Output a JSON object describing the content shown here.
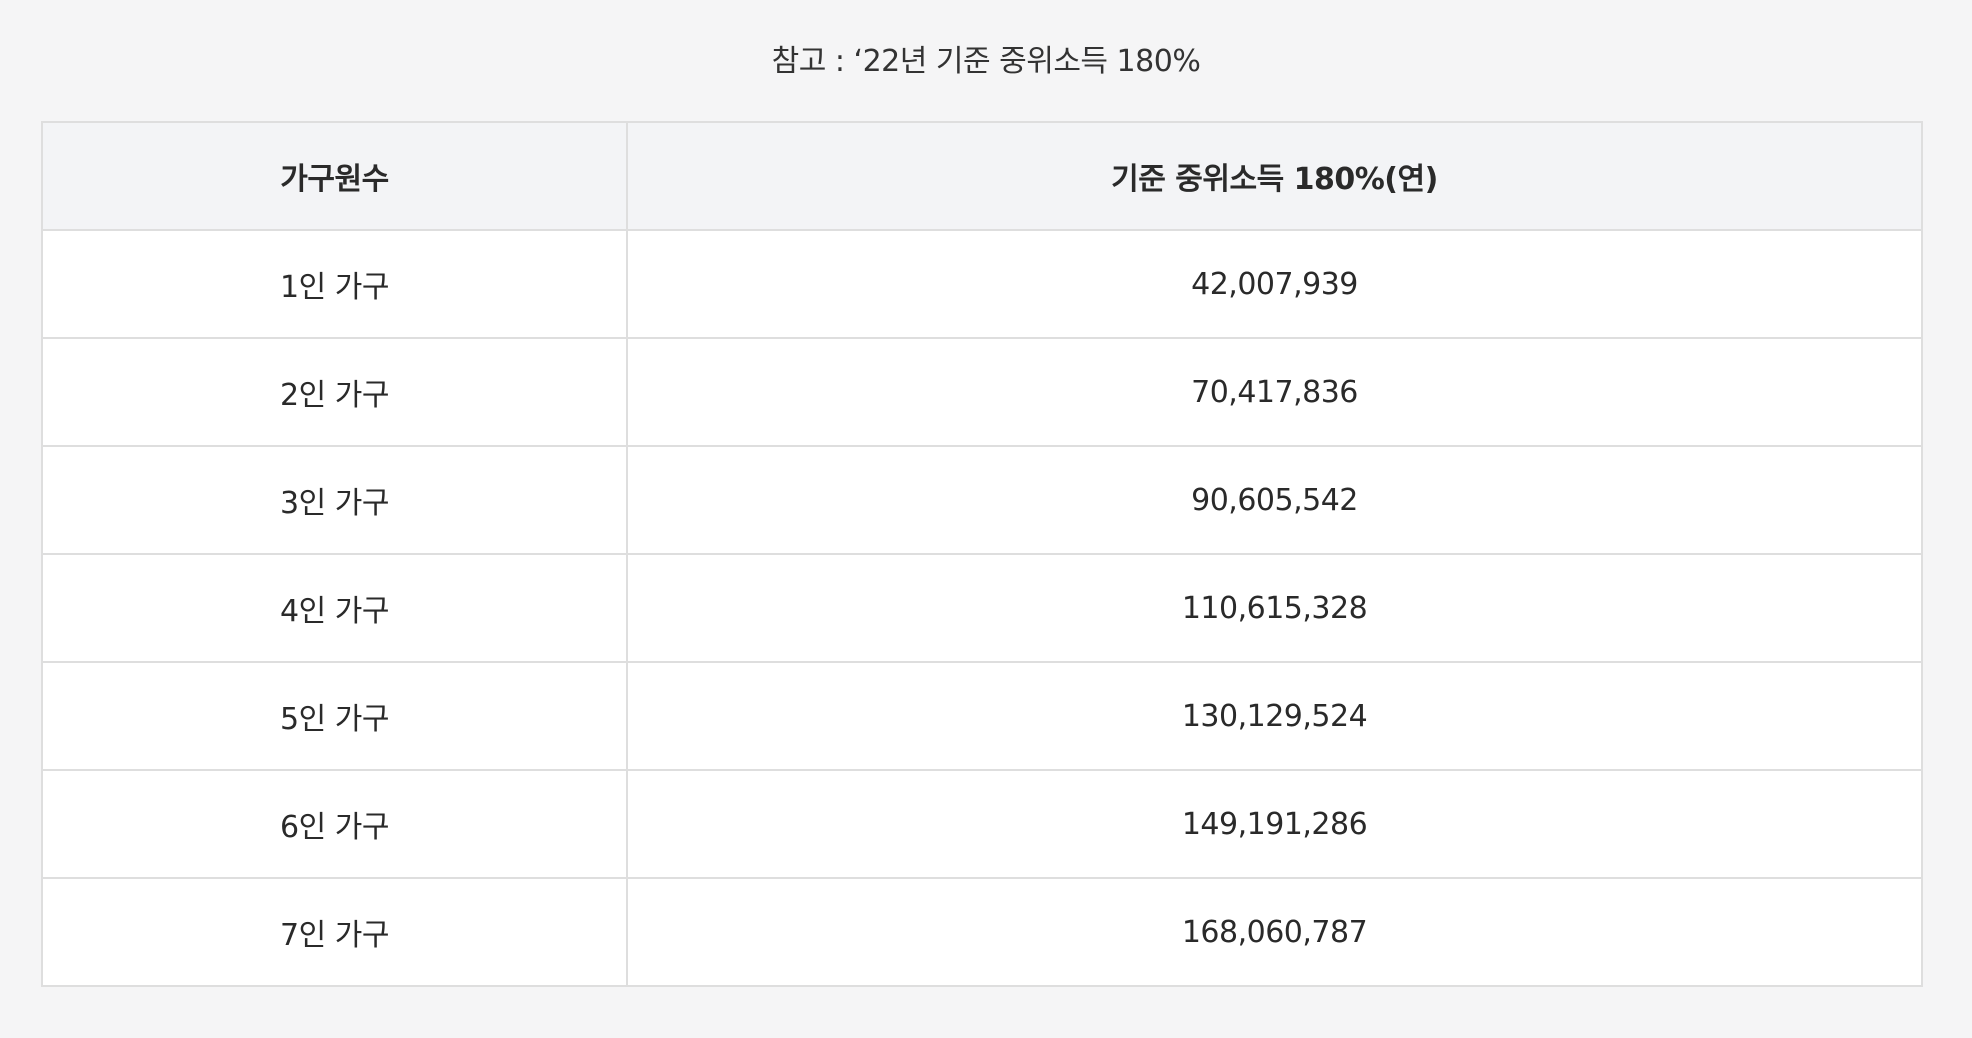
{
  "caption": "참고 : ‘22년 기준 중위소득 180%",
  "table": {
    "headers": [
      "가구원수",
      "기준 중위소득 180%(연)"
    ],
    "rows": [
      {
        "household": "1인 가구",
        "income": "42,007,939"
      },
      {
        "household": "2인 가구",
        "income": "70,417,836"
      },
      {
        "household": "3인 가구",
        "income": "90,605,542"
      },
      {
        "household": "4인 가구",
        "income": "110,615,328"
      },
      {
        "household": "5인 가구",
        "income": "130,129,524"
      },
      {
        "household": "6인 가구",
        "income": "149,191,286"
      },
      {
        "household": "7인 가구",
        "income": "168,060,787"
      }
    ]
  }
}
